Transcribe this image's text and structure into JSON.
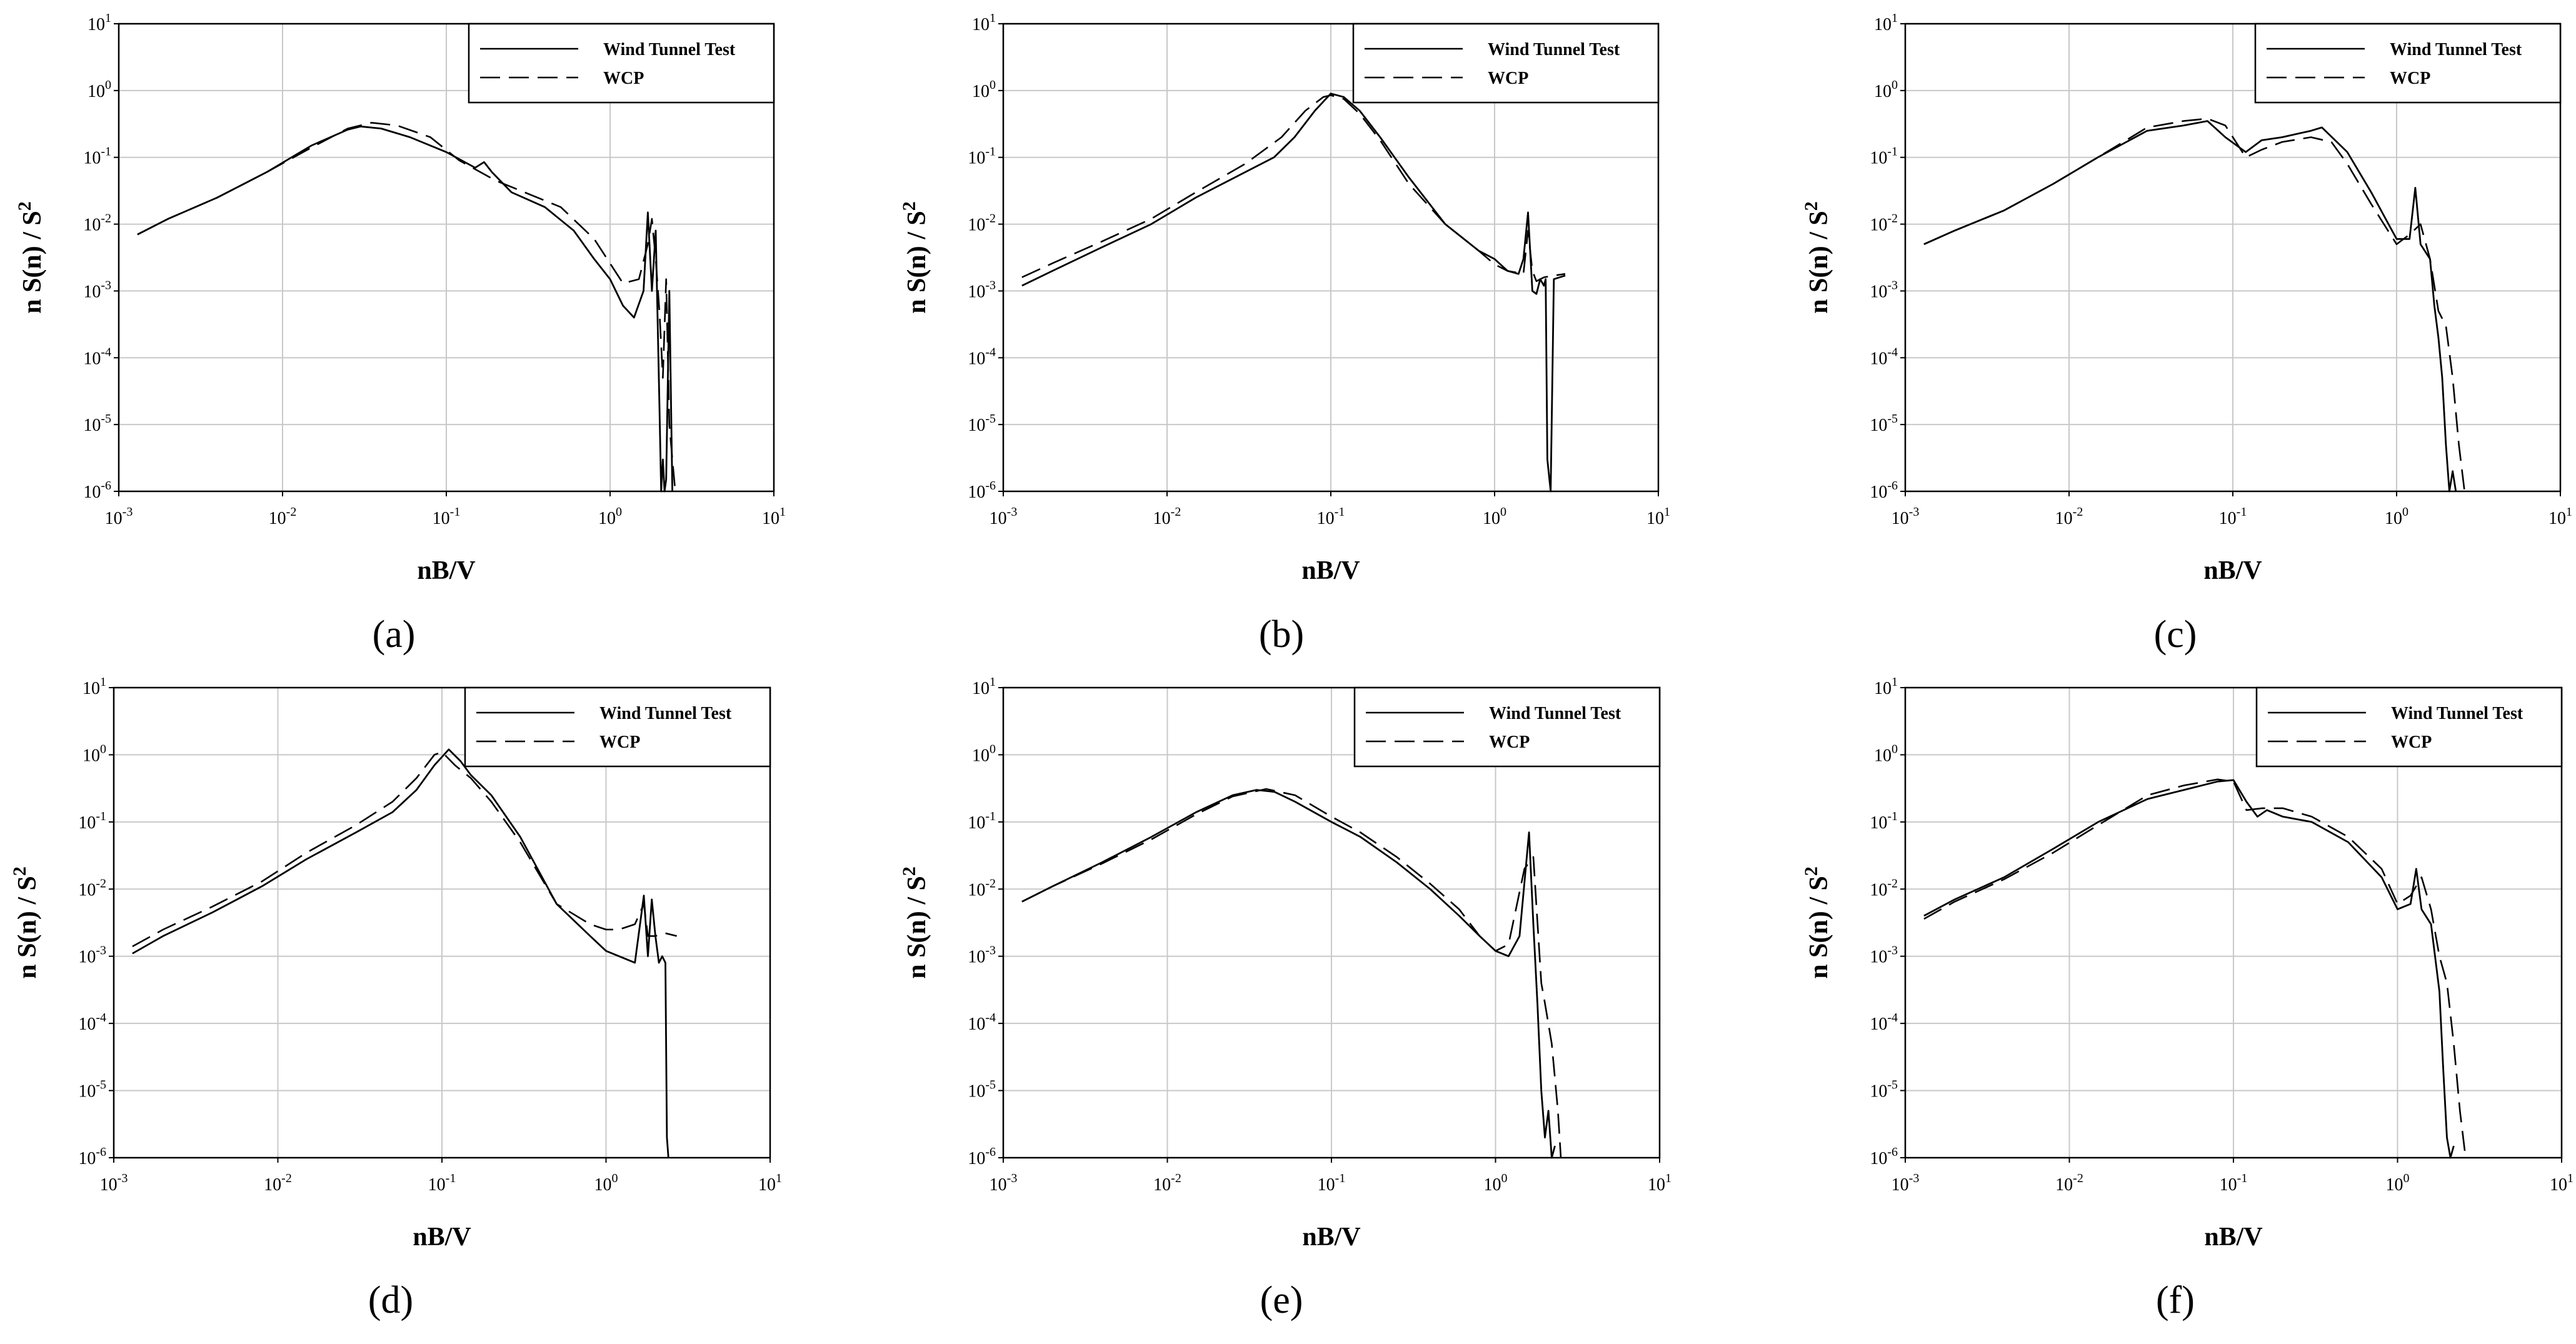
{
  "figure": {
    "legend_series": [
      "Wind Tunnel Test",
      "WCP"
    ],
    "x_label": "nB/V",
    "y_label": "n S(n) / S",
    "y_label_sup": "2",
    "x_ticks": [
      {
        "base": "10",
        "exp": "-3"
      },
      {
        "base": "10",
        "exp": "-2"
      },
      {
        "base": "10",
        "exp": "-1"
      },
      {
        "base": "10",
        "exp": "0"
      },
      {
        "base": "10",
        "exp": "1"
      }
    ],
    "y_ticks": [
      {
        "base": "10",
        "exp": "-6"
      },
      {
        "base": "10",
        "exp": "-5"
      },
      {
        "base": "10",
        "exp": "-4"
      },
      {
        "base": "10",
        "exp": "-3"
      },
      {
        "base": "10",
        "exp": "-2"
      },
      {
        "base": "10",
        "exp": "-1"
      },
      {
        "base": "10",
        "exp": "0"
      },
      {
        "base": "10",
        "exp": "1"
      }
    ],
    "colors": {
      "line": "#000000",
      "grid": "#c8c8c8",
      "axis": "#000000"
    }
  },
  "chart_data": [
    {
      "type": "line",
      "panel_label": "(a)",
      "xscale": "log",
      "yscale": "log",
      "xlim": [
        0.001,
        10
      ],
      "ylim": [
        1e-06,
        10
      ],
      "xlabel": "nB/V",
      "ylabel": "n S(n) / S²",
      "legend": "top-right",
      "grid": true,
      "series": [
        {
          "name": "Wind Tunnel Test",
          "style": "solid",
          "x": [
            0.0013,
            0.002,
            0.004,
            0.008,
            0.015,
            0.025,
            0.03,
            0.04,
            0.06,
            0.1,
            0.15,
            0.17,
            0.19,
            0.25,
            0.4,
            0.6,
            0.8,
            1.0,
            1.2,
            1.4,
            1.6,
            1.7,
            1.8,
            1.9,
            2.0,
            2.05,
            2.1,
            2.15,
            2.2,
            2.3,
            2.4
          ],
          "y": [
            0.007,
            0.012,
            0.025,
            0.06,
            0.15,
            0.26,
            0.29,
            0.27,
            0.2,
            0.12,
            0.07,
            0.085,
            0.06,
            0.03,
            0.018,
            0.008,
            0.003,
            0.0015,
            0.0006,
            0.0004,
            0.001,
            0.015,
            0.001,
            0.008,
            2e-05,
            1e-06,
            3e-06,
            1e-06,
            1.5e-06,
            0.001,
            1e-06
          ]
        },
        {
          "name": "WCP",
          "style": "dashed",
          "x": [
            0.0013,
            0.002,
            0.004,
            0.008,
            0.015,
            0.025,
            0.035,
            0.05,
            0.08,
            0.12,
            0.2,
            0.3,
            0.5,
            0.8,
            1.2,
            1.5,
            1.7,
            1.8,
            1.9,
            2.0,
            2.1,
            2.2,
            2.3,
            2.4,
            2.5
          ],
          "y": [
            0.007,
            0.012,
            0.025,
            0.06,
            0.14,
            0.27,
            0.33,
            0.3,
            0.2,
            0.09,
            0.045,
            0.03,
            0.018,
            0.006,
            0.0013,
            0.0015,
            0.005,
            0.012,
            0.003,
            0.0005,
            5e-05,
            0.0015,
            1e-05,
            3e-06,
            1e-06
          ]
        }
      ]
    },
    {
      "type": "line",
      "panel_label": "(b)",
      "xscale": "log",
      "yscale": "log",
      "xlim": [
        0.001,
        10
      ],
      "ylim": [
        1e-06,
        10
      ],
      "xlabel": "nB/V",
      "ylabel": "n S(n) / S²",
      "legend": "top-right",
      "grid": true,
      "series": [
        {
          "name": "Wind Tunnel Test",
          "style": "solid",
          "x": [
            0.0013,
            0.002,
            0.004,
            0.008,
            0.015,
            0.03,
            0.045,
            0.06,
            0.08,
            0.1,
            0.12,
            0.15,
            0.2,
            0.3,
            0.5,
            0.8,
            1.0,
            1.2,
            1.4,
            1.5,
            1.6,
            1.7,
            1.8,
            1.9,
            2.0,
            2.05,
            2.1,
            2.2,
            2.3,
            2.5,
            2.7
          ],
          "y": [
            0.0012,
            0.002,
            0.0045,
            0.01,
            0.025,
            0.06,
            0.1,
            0.2,
            0.5,
            0.9,
            0.8,
            0.5,
            0.2,
            0.05,
            0.01,
            0.004,
            0.003,
            0.002,
            0.0018,
            0.003,
            0.015,
            0.001,
            0.0009,
            0.0015,
            0.0012,
            0.0015,
            3e-06,
            1e-06,
            0.0015,
            0.0016,
            0.0017
          ]
        },
        {
          "name": "WCP",
          "style": "dashed",
          "x": [
            0.0013,
            0.002,
            0.004,
            0.008,
            0.015,
            0.03,
            0.05,
            0.07,
            0.09,
            0.1,
            0.12,
            0.15,
            0.2,
            0.3,
            0.5,
            0.8,
            1.0,
            1.2,
            1.5,
            1.6,
            1.7,
            1.8,
            2.0,
            2.3,
            2.7
          ],
          "y": [
            0.0016,
            0.0026,
            0.0055,
            0.012,
            0.03,
            0.08,
            0.2,
            0.5,
            0.8,
            0.85,
            0.75,
            0.45,
            0.18,
            0.04,
            0.01,
            0.004,
            0.0025,
            0.002,
            0.0018,
            0.008,
            0.002,
            0.0014,
            0.0016,
            0.0017,
            0.0018
          ]
        }
      ]
    },
    {
      "type": "line",
      "panel_label": "(c)",
      "xscale": "log",
      "yscale": "log",
      "xlim": [
        0.001,
        10
      ],
      "ylim": [
        1e-06,
        10
      ],
      "xlabel": "nB/V",
      "ylabel": "n S(n) / S²",
      "legend": "top-right",
      "grid": true,
      "series": [
        {
          "name": "Wind Tunnel Test",
          "style": "solid",
          "x": [
            0.0013,
            0.002,
            0.004,
            0.008,
            0.015,
            0.03,
            0.05,
            0.07,
            0.09,
            0.12,
            0.15,
            0.2,
            0.3,
            0.35,
            0.5,
            0.7,
            1.0,
            1.2,
            1.3,
            1.4,
            1.6,
            1.7,
            1.8,
            1.9,
            2.0,
            2.1,
            2.2,
            2.3
          ],
          "y": [
            0.005,
            0.008,
            0.016,
            0.04,
            0.1,
            0.25,
            0.3,
            0.35,
            0.2,
            0.12,
            0.18,
            0.2,
            0.25,
            0.28,
            0.12,
            0.03,
            0.006,
            0.006,
            0.035,
            0.005,
            0.003,
            0.0006,
            0.0002,
            5e-05,
            5e-06,
            1e-06,
            2e-06,
            1e-06
          ]
        },
        {
          "name": "WCP",
          "style": "dashed",
          "x": [
            0.0013,
            0.002,
            0.004,
            0.008,
            0.015,
            0.03,
            0.05,
            0.07,
            0.09,
            0.12,
            0.15,
            0.2,
            0.3,
            0.4,
            0.5,
            0.7,
            1.0,
            1.2,
            1.4,
            1.6,
            1.8,
            2.0,
            2.2,
            2.4,
            2.6
          ],
          "y": [
            0.005,
            0.008,
            0.016,
            0.04,
            0.1,
            0.28,
            0.35,
            0.38,
            0.3,
            0.1,
            0.13,
            0.17,
            0.2,
            0.17,
            0.08,
            0.02,
            0.005,
            0.007,
            0.01,
            0.003,
            0.0005,
            0.0003,
            5e-05,
            5e-06,
            1e-06
          ]
        }
      ]
    },
    {
      "type": "line",
      "panel_label": "(d)",
      "xscale": "log",
      "yscale": "log",
      "xlim": [
        0.001,
        10
      ],
      "ylim": [
        1e-06,
        10
      ],
      "xlabel": "nB/V",
      "ylabel": "n S(n) / S²",
      "legend": "top-right",
      "grid": true,
      "series": [
        {
          "name": "Wind Tunnel Test",
          "style": "solid",
          "x": [
            0.0013,
            0.002,
            0.004,
            0.008,
            0.015,
            0.03,
            0.05,
            0.07,
            0.09,
            0.11,
            0.13,
            0.15,
            0.2,
            0.3,
            0.5,
            0.8,
            1.0,
            1.2,
            1.5,
            1.7,
            1.8,
            1.9,
            2.0,
            2.1,
            2.2,
            2.3,
            2.35,
            2.4
          ],
          "y": [
            0.0011,
            0.002,
            0.0045,
            0.011,
            0.028,
            0.07,
            0.14,
            0.3,
            0.7,
            1.2,
            0.8,
            0.5,
            0.25,
            0.06,
            0.006,
            0.002,
            0.0012,
            0.001,
            0.0008,
            0.008,
            0.001,
            0.007,
            0.002,
            0.0008,
            0.001,
            0.0008,
            2e-06,
            1e-06
          ]
        },
        {
          "name": "WCP",
          "style": "dashed",
          "x": [
            0.0013,
            0.002,
            0.004,
            0.008,
            0.015,
            0.03,
            0.05,
            0.07,
            0.09,
            0.1,
            0.12,
            0.15,
            0.2,
            0.3,
            0.5,
            0.8,
            1.0,
            1.2,
            1.5,
            1.7,
            1.8,
            2.0,
            2.3,
            2.7
          ],
          "y": [
            0.0014,
            0.0025,
            0.0055,
            0.013,
            0.035,
            0.09,
            0.2,
            0.45,
            1.0,
            1.1,
            0.7,
            0.45,
            0.2,
            0.05,
            0.006,
            0.003,
            0.0025,
            0.0025,
            0.003,
            0.006,
            0.002,
            0.002,
            0.0022,
            0.002
          ]
        }
      ]
    },
    {
      "type": "line",
      "panel_label": "(e)",
      "xscale": "log",
      "yscale": "log",
      "xlim": [
        0.001,
        10
      ],
      "ylim": [
        1e-06,
        10
      ],
      "xlabel": "nB/V",
      "ylabel": "n S(n) / S²",
      "legend": "top-right",
      "grid": true,
      "series": [
        {
          "name": "Wind Tunnel Test",
          "style": "solid",
          "x": [
            0.0013,
            0.002,
            0.004,
            0.008,
            0.015,
            0.025,
            0.035,
            0.045,
            0.06,
            0.1,
            0.15,
            0.25,
            0.4,
            0.6,
            0.8,
            1.0,
            1.2,
            1.4,
            1.6,
            1.7,
            1.8,
            1.9,
            2.0,
            2.1,
            2.2,
            2.3
          ],
          "y": [
            0.0065,
            0.011,
            0.025,
            0.06,
            0.14,
            0.25,
            0.3,
            0.28,
            0.2,
            0.1,
            0.06,
            0.025,
            0.01,
            0.004,
            0.002,
            0.0012,
            0.001,
            0.002,
            0.07,
            0.003,
            0.0002,
            1e-05,
            2e-06,
            5e-06,
            1e-06,
            1.5e-06
          ]
        },
        {
          "name": "WCP",
          "style": "dashed",
          "x": [
            0.0013,
            0.002,
            0.004,
            0.008,
            0.015,
            0.025,
            0.04,
            0.06,
            0.1,
            0.15,
            0.25,
            0.4,
            0.6,
            0.8,
            1.0,
            1.2,
            1.5,
            1.7,
            1.9,
            2.0,
            2.2,
            2.4,
            2.5
          ],
          "y": [
            0.0065,
            0.011,
            0.024,
            0.055,
            0.13,
            0.24,
            0.31,
            0.25,
            0.12,
            0.07,
            0.03,
            0.012,
            0.005,
            0.002,
            0.0012,
            0.0015,
            0.02,
            0.03,
            0.0004,
            0.0002,
            5e-05,
            5e-06,
            1e-06
          ]
        }
      ]
    },
    {
      "type": "line",
      "panel_label": "(f)",
      "xscale": "log",
      "yscale": "log",
      "xlim": [
        0.001,
        10
      ],
      "ylim": [
        1e-06,
        10
      ],
      "xlabel": "nB/V",
      "ylabel": "n S(n) / S²",
      "legend": "top-right",
      "grid": true,
      "series": [
        {
          "name": "Wind Tunnel Test",
          "style": "solid",
          "x": [
            0.0013,
            0.002,
            0.004,
            0.008,
            0.015,
            0.03,
            0.05,
            0.08,
            0.1,
            0.12,
            0.14,
            0.16,
            0.2,
            0.3,
            0.5,
            0.8,
            1.0,
            1.2,
            1.3,
            1.4,
            1.6,
            1.8,
            1.9,
            2.0,
            2.1,
            2.2
          ],
          "y": [
            0.004,
            0.007,
            0.015,
            0.04,
            0.1,
            0.22,
            0.3,
            0.4,
            0.42,
            0.2,
            0.12,
            0.15,
            0.12,
            0.1,
            0.05,
            0.015,
            0.005,
            0.006,
            0.02,
            0.005,
            0.003,
            0.0003,
            2e-05,
            2e-06,
            1e-06,
            1.5e-06
          ]
        },
        {
          "name": "WCP",
          "style": "dashed",
          "x": [
            0.0013,
            0.002,
            0.004,
            0.008,
            0.015,
            0.03,
            0.05,
            0.08,
            0.1,
            0.12,
            0.15,
            0.2,
            0.3,
            0.5,
            0.8,
            1.0,
            1.2,
            1.4,
            1.6,
            1.8,
            2.0,
            2.2,
            2.4,
            2.6
          ],
          "y": [
            0.0036,
            0.0065,
            0.014,
            0.035,
            0.09,
            0.25,
            0.35,
            0.43,
            0.4,
            0.15,
            0.16,
            0.16,
            0.12,
            0.06,
            0.02,
            0.006,
            0.008,
            0.015,
            0.005,
            0.001,
            0.0004,
            5e-05,
            5e-06,
            1e-06
          ]
        }
      ]
    }
  ]
}
